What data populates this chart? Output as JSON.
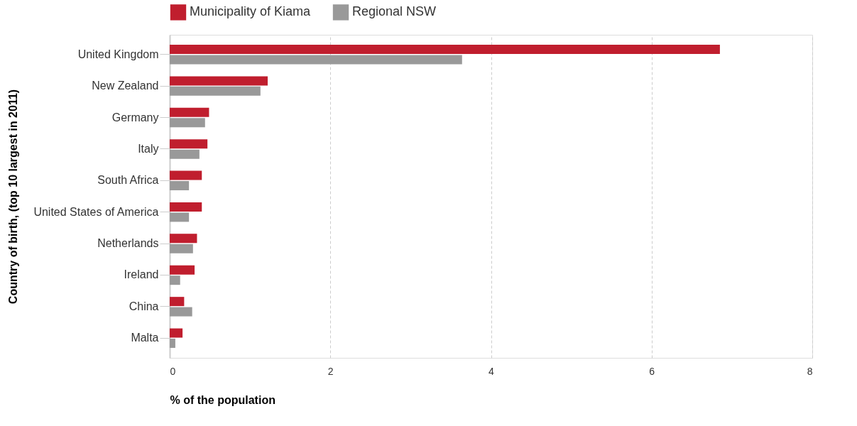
{
  "chart_data": {
    "type": "bar",
    "orientation": "horizontal",
    "categories": [
      "United Kingdom",
      "New Zealand",
      "Germany",
      "Italy",
      "South Africa",
      "United States of America",
      "Netherlands",
      "Ireland",
      "China",
      "Malta"
    ],
    "series": [
      {
        "name": "Municipality of Kiama",
        "color": "#c01e2e",
        "values": [
          6.85,
          1.22,
          0.49,
          0.47,
          0.4,
          0.4,
          0.34,
          0.31,
          0.18,
          0.16
        ]
      },
      {
        "name": "Regional NSW",
        "color": "#999999",
        "values": [
          3.64,
          1.13,
          0.44,
          0.37,
          0.24,
          0.24,
          0.29,
          0.13,
          0.28,
          0.07
        ]
      }
    ],
    "xlabel": "% of the population",
    "ylabel": "Country of birth, (top 10 largest in 2011)",
    "xlim": [
      0,
      8
    ],
    "xticks": [
      0,
      2,
      4,
      6,
      8
    ],
    "grid": "x",
    "legend": "top"
  }
}
